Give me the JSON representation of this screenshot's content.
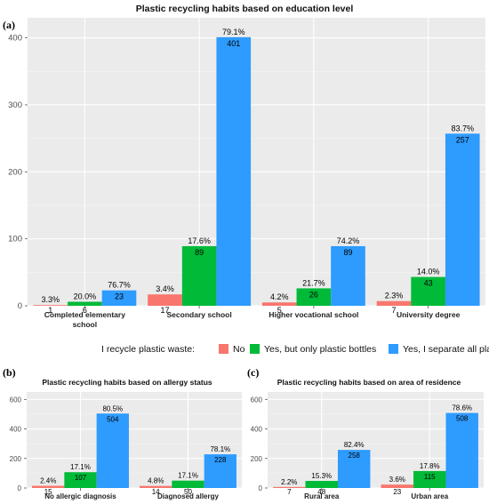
{
  "legend": {
    "title": "I recycle plastic waste:",
    "items": [
      {
        "name": "No",
        "color": "#F8766D"
      },
      {
        "name": "Yes, but only plastic bottles",
        "color": "#00BA38"
      },
      {
        "name": "Yes, I separate all plastics",
        "color": "#2E9BFF"
      }
    ]
  },
  "chart_data": [
    {
      "type": "bar",
      "panel": "(a)",
      "title": "Plastic recycling habits based on education level",
      "categories": [
        "Completed elementary school",
        "Secondary school",
        "Higher vocational school",
        "University degree"
      ],
      "category_lines": [
        [
          "Completed elementary",
          "school"
        ],
        [
          "Secondary school"
        ],
        [
          "Higher vocational school"
        ],
        [
          "University degree"
        ]
      ],
      "series": [
        {
          "name": "No",
          "values": [
            1,
            17,
            5,
            7
          ],
          "labels": [
            "3.3%",
            "3.4%",
            "4.2%",
            "2.3%"
          ]
        },
        {
          "name": "Yes, but only plastic bottles",
          "values": [
            6,
            89,
            26,
            43
          ],
          "labels": [
            "20.0%",
            "17.6%",
            "21.7%",
            "14.0%"
          ]
        },
        {
          "name": "Yes, I separate all plastics",
          "values": [
            23,
            401,
            89,
            257
          ],
          "labels": [
            "76.7%",
            "79.1%",
            "74.2%",
            "83.7%"
          ]
        }
      ],
      "ylim": [
        0,
        430
      ],
      "yticks": [
        0,
        100,
        200,
        300,
        400
      ],
      "grid": true
    },
    {
      "type": "bar",
      "panel": "(b)",
      "title": "Plastic recycling habits based on allergy status",
      "categories": [
        "No allergic diagnosis",
        "Diagnosed allergy"
      ],
      "category_lines": [
        [
          "No allergic diagnosis"
        ],
        [
          "Diagnosed allergy"
        ]
      ],
      "series": [
        {
          "name": "No",
          "values": [
            15,
            14
          ],
          "labels": [
            "2.4%",
            "4.8%"
          ]
        },
        {
          "name": "Yes, but only plastic bottles",
          "values": [
            107,
            50
          ],
          "labels": [
            "17.1%",
            "17.1%"
          ]
        },
        {
          "name": "Yes, I separate all plastics",
          "values": [
            504,
            228
          ],
          "labels": [
            "80.5%",
            "78.1%"
          ]
        }
      ],
      "ylim": [
        0,
        650
      ],
      "yticks": [
        0,
        200,
        400,
        600
      ],
      "grid": true
    },
    {
      "type": "bar",
      "panel": "(c)",
      "title": "Plastic recycling habits based on area of residence",
      "categories": [
        "Rural area",
        "Urban area"
      ],
      "category_lines": [
        [
          "Rural area"
        ],
        [
          "Urban area"
        ]
      ],
      "series": [
        {
          "name": "No",
          "values": [
            7,
            23
          ],
          "labels": [
            "2.2%",
            "3.6%"
          ]
        },
        {
          "name": "Yes, but only plastic bottles",
          "values": [
            48,
            115
          ],
          "labels": [
            "15.3%",
            "17.8%"
          ]
        },
        {
          "name": "Yes, I separate all plastics",
          "values": [
            258,
            508
          ],
          "labels": [
            "82.4%",
            "78.6%"
          ]
        }
      ],
      "ylim": [
        0,
        650
      ],
      "yticks": [
        0,
        200,
        400,
        600
      ],
      "grid": true
    }
  ]
}
